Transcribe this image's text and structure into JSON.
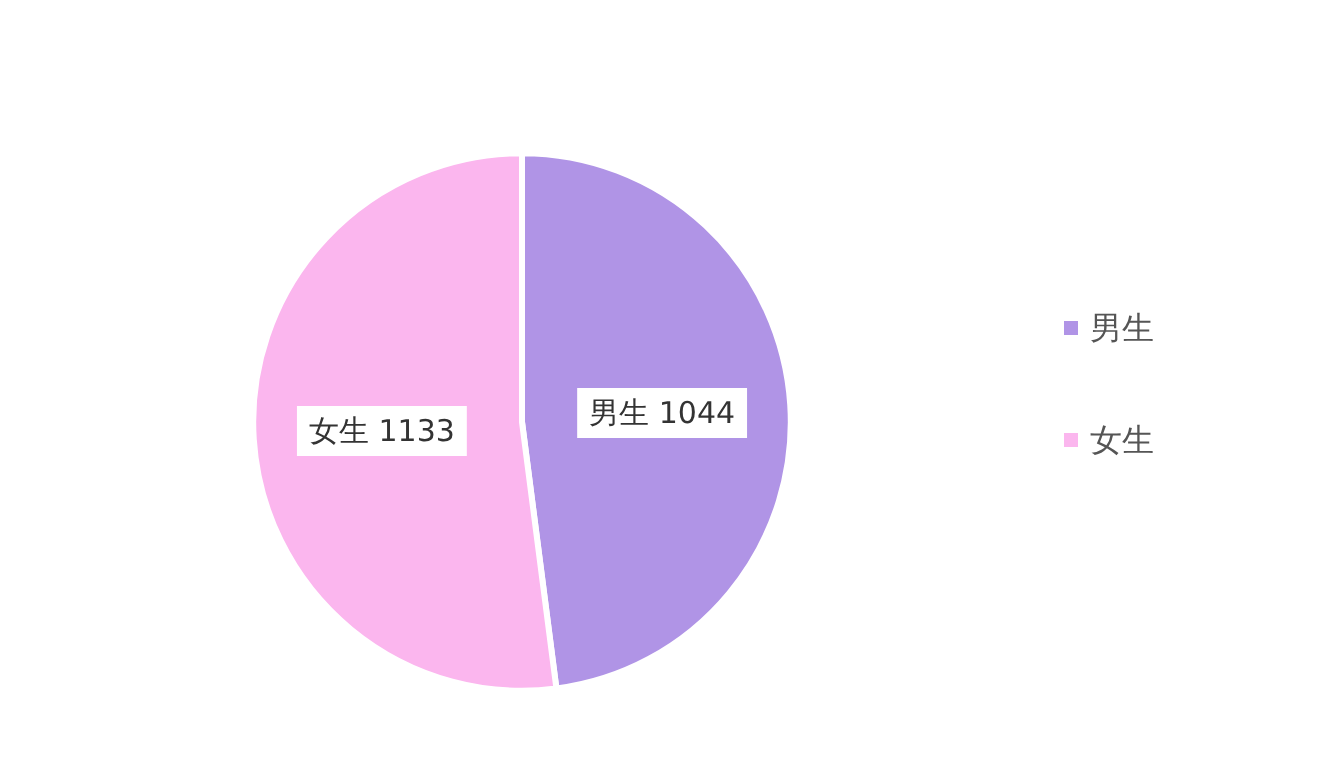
{
  "chart_data": {
    "type": "pie",
    "categories": [
      "男生",
      "女生"
    ],
    "values": [
      1044,
      1133
    ],
    "colors": [
      "#b094e6",
      "#fbb6ee"
    ],
    "value_labels": [
      "男生 1044",
      "女生 1133"
    ],
    "legend": "right"
  }
}
